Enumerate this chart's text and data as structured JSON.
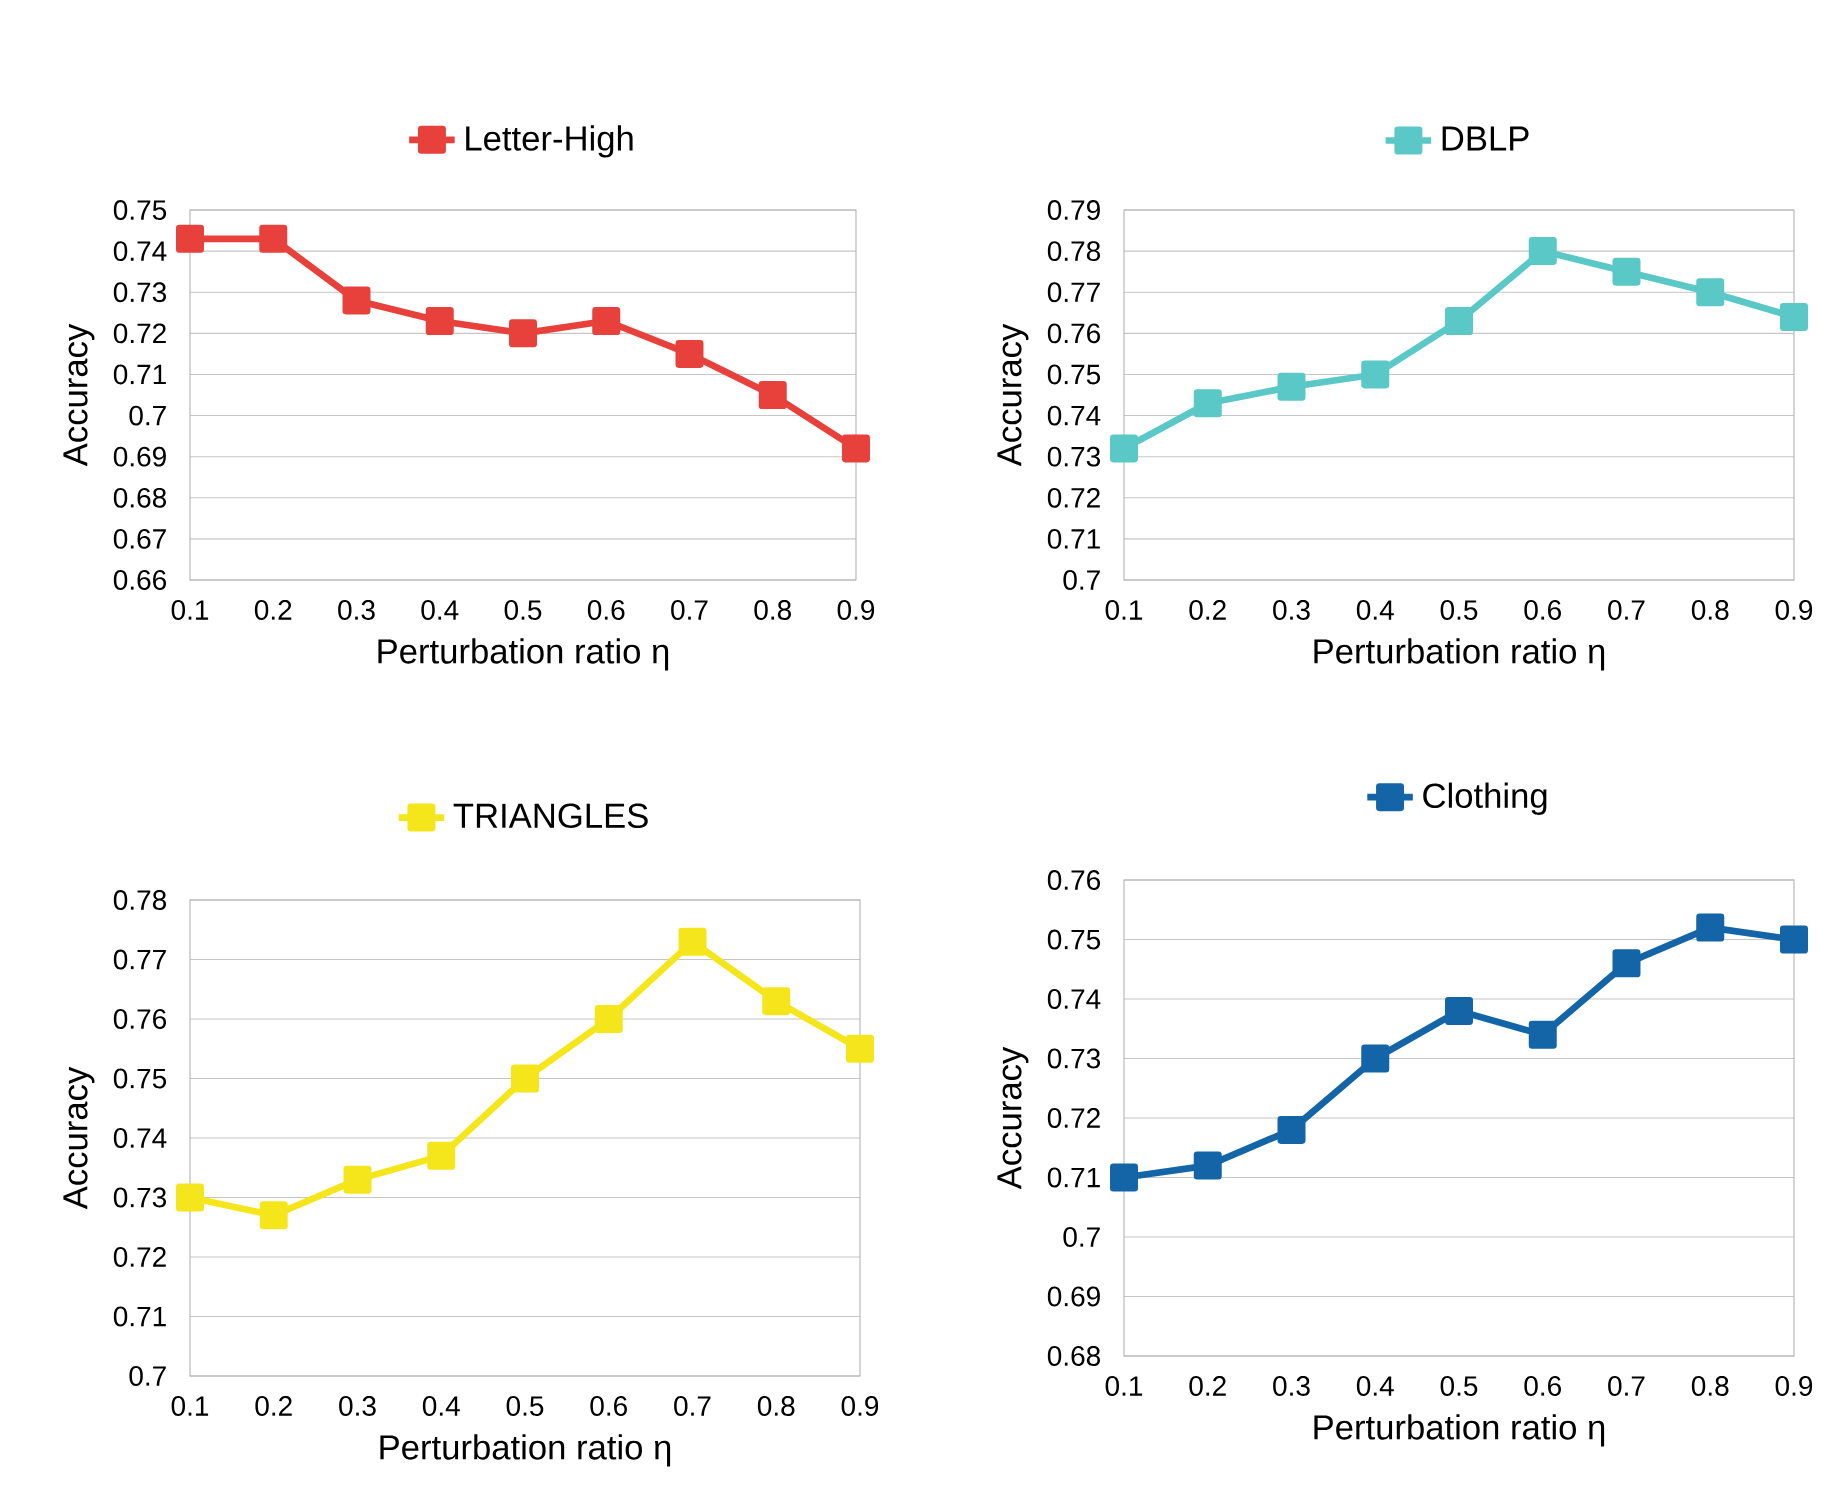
{
  "chart_data": [
    {
      "type": "line",
      "categories": [
        "0.1",
        "0.2",
        "0.3",
        "0.4",
        "0.5",
        "0.6",
        "0.7",
        "0.8",
        "0.9"
      ],
      "series": [
        {
          "name": "Letter-High",
          "color": "#e8413c",
          "values": [
            0.743,
            0.743,
            0.728,
            0.723,
            0.72,
            0.723,
            0.715,
            0.705,
            0.692
          ]
        }
      ],
      "xlabel": "Perturbation ratio η",
      "ylabel": "Accuracy",
      "ylim": [
        0.66,
        0.75
      ],
      "yticks": [
        0.66,
        0.67,
        0.68,
        0.69,
        0.7,
        0.71,
        0.72,
        0.73,
        0.74,
        0.75
      ],
      "grid": "y",
      "legend": "top",
      "marker": "square"
    },
    {
      "type": "line",
      "categories": [
        "0.1",
        "0.2",
        "0.3",
        "0.4",
        "0.5",
        "0.6",
        "0.7",
        "0.8",
        "0.9"
      ],
      "series": [
        {
          "name": "DBLP",
          "color": "#5bc8c8",
          "values": [
            0.732,
            0.743,
            0.747,
            0.75,
            0.763,
            0.78,
            0.775,
            0.77,
            0.764
          ]
        }
      ],
      "xlabel": "Perturbation ratio η",
      "ylabel": "Accuracy",
      "ylim": [
        0.7,
        0.79
      ],
      "yticks": [
        0.7,
        0.71,
        0.72,
        0.73,
        0.74,
        0.75,
        0.76,
        0.77,
        0.78,
        0.79
      ],
      "grid": "y",
      "legend": "top",
      "marker": "square"
    },
    {
      "type": "line",
      "categories": [
        "0.1",
        "0.2",
        "0.3",
        "0.4",
        "0.5",
        "0.6",
        "0.7",
        "0.8",
        "0.9"
      ],
      "series": [
        {
          "name": "TRIANGLES",
          "color": "#f5e61c",
          "values": [
            0.73,
            0.727,
            0.733,
            0.737,
            0.75,
            0.76,
            0.773,
            0.763,
            0.755
          ]
        }
      ],
      "xlabel": "Perturbation ratio η",
      "ylabel": "Accuracy",
      "ylim": [
        0.7,
        0.78
      ],
      "yticks": [
        0.7,
        0.71,
        0.72,
        0.73,
        0.74,
        0.75,
        0.76,
        0.77,
        0.78
      ],
      "grid": "y",
      "legend": "top",
      "marker": "square"
    },
    {
      "type": "line",
      "categories": [
        "0.1",
        "0.2",
        "0.3",
        "0.4",
        "0.5",
        "0.6",
        "0.7",
        "0.8",
        "0.9"
      ],
      "series": [
        {
          "name": "Clothing",
          "color": "#1464a8",
          "values": [
            0.71,
            0.712,
            0.718,
            0.73,
            0.738,
            0.734,
            0.746,
            0.752,
            0.75
          ]
        }
      ],
      "xlabel": "Perturbation ratio η",
      "ylabel": "Accuracy",
      "ylim": [
        0.68,
        0.76
      ],
      "yticks": [
        0.68,
        0.69,
        0.7,
        0.71,
        0.72,
        0.73,
        0.74,
        0.75,
        0.76
      ],
      "grid": "y",
      "legend": "top",
      "marker": "square"
    }
  ]
}
